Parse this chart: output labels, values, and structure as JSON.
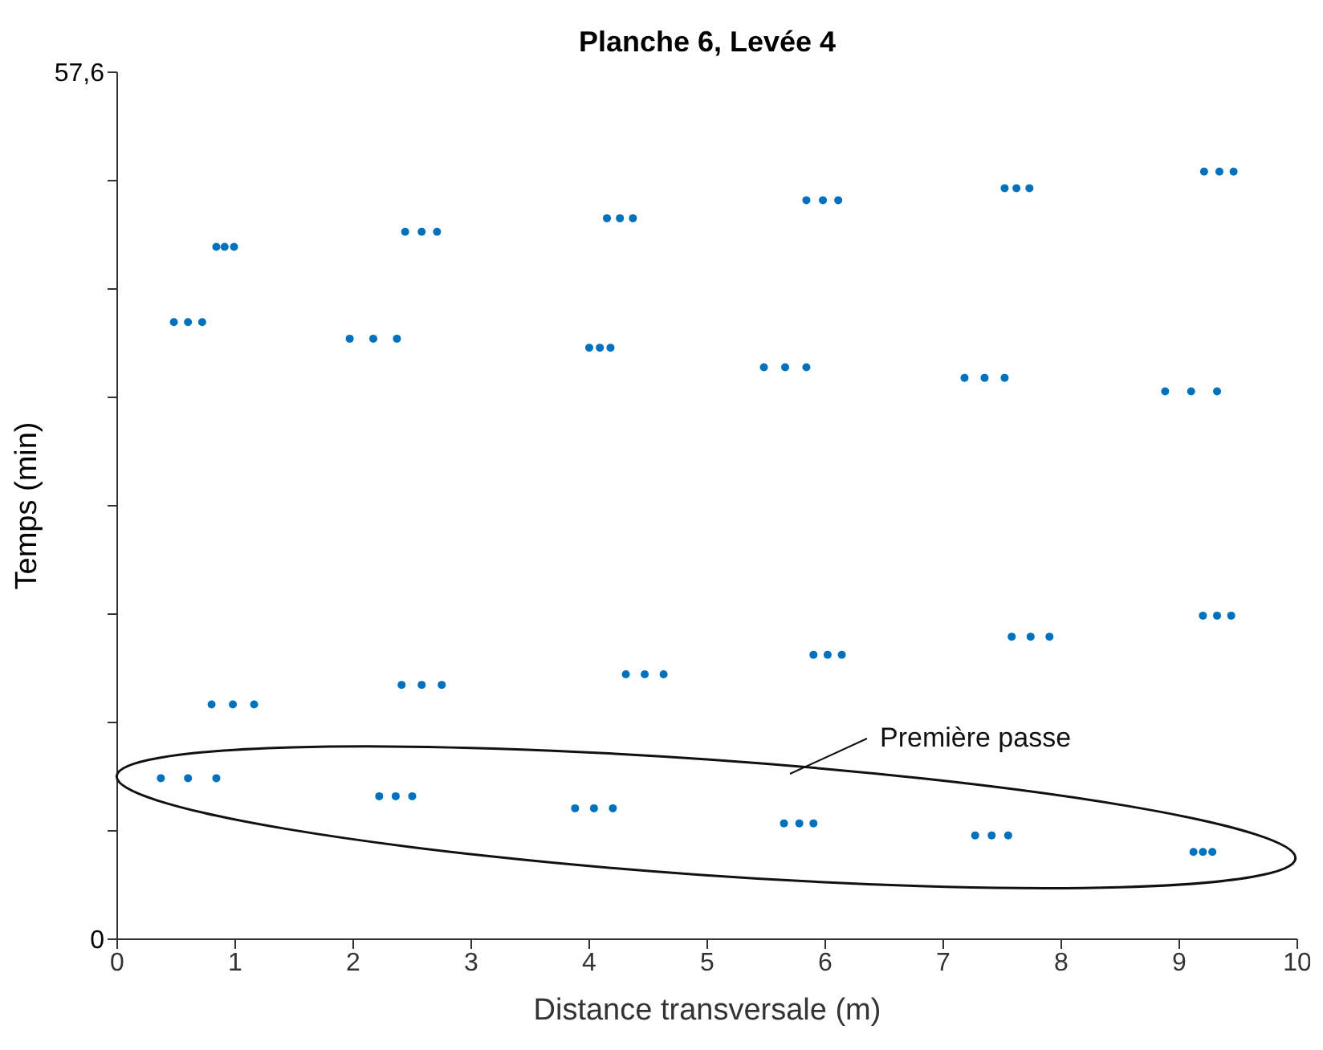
{
  "chart_data": {
    "type": "scatter",
    "title": "Planche 6, Levée 4",
    "xlabel": "Distance transversale (m)",
    "ylabel": "Temps (min)",
    "annotations": [
      "Première passe"
    ],
    "xlim": [
      0,
      10
    ],
    "xticks": [
      0,
      1,
      2,
      3,
      4,
      5,
      6,
      7,
      8,
      9,
      10
    ],
    "ylim": [
      0,
      57.6
    ],
    "yticks": [
      0,
      {
        "value": 7.2,
        "label": null
      },
      {
        "value": 14.4,
        "label": null
      },
      {
        "value": 21.6,
        "label": null
      },
      {
        "value": 28.8,
        "label": null
      },
      {
        "value": 36,
        "label": null
      },
      {
        "value": 43.2,
        "label": null
      },
      {
        "value": 50.4,
        "label": null
      },
      {
        "value": 57.6,
        "label": "57,6"
      }
    ],
    "grid": false,
    "legend": false,
    "marker": "circle",
    "series": [
      {
        "color": "#0072bd",
        "x": [
          0.84,
          0.91,
          0.99,
          2.44,
          2.58,
          2.71,
          4.15,
          4.26,
          4.37,
          5.84,
          5.98,
          6.11,
          7.52,
          7.62,
          7.73,
          9.21,
          9.34,
          9.46,
          0.48,
          0.6,
          0.72,
          1.97,
          2.17,
          2.37,
          4.0,
          4.09,
          4.18,
          5.48,
          5.66,
          5.84,
          7.18,
          7.35,
          7.52,
          8.88,
          9.1,
          9.32,
          0.8,
          0.98,
          1.16,
          2.41,
          2.58,
          2.75,
          4.31,
          4.47,
          4.63,
          5.9,
          6.02,
          6.14,
          7.58,
          7.74,
          7.9,
          9.2,
          9.32,
          9.44,
          0.37,
          0.6,
          0.84,
          2.22,
          2.36,
          2.5,
          3.88,
          4.04,
          4.2,
          5.65,
          5.78,
          5.9,
          7.27,
          7.41,
          7.55,
          9.12,
          9.2,
          9.28
        ],
        "values": [
          46.0,
          46.0,
          46.0,
          47.0,
          47.0,
          47.0,
          47.9,
          47.9,
          47.9,
          49.1,
          49.1,
          49.1,
          49.9,
          49.9,
          49.9,
          51.0,
          51.0,
          51.0,
          41.0,
          41.0,
          41.0,
          39.9,
          39.9,
          39.9,
          39.3,
          39.3,
          39.3,
          38.0,
          38.0,
          38.0,
          37.3,
          37.3,
          37.3,
          36.4,
          36.4,
          36.4,
          15.6,
          15.6,
          15.6,
          16.9,
          16.9,
          16.9,
          17.6,
          17.6,
          17.6,
          18.9,
          18.9,
          18.9,
          20.1,
          20.1,
          20.1,
          21.5,
          21.5,
          21.5,
          10.7,
          10.7,
          10.7,
          9.5,
          9.5,
          9.5,
          8.7,
          8.7,
          8.7,
          7.7,
          7.7,
          7.7,
          6.9,
          6.9,
          6.9,
          5.8,
          5.8,
          5.8
        ]
      }
    ]
  }
}
